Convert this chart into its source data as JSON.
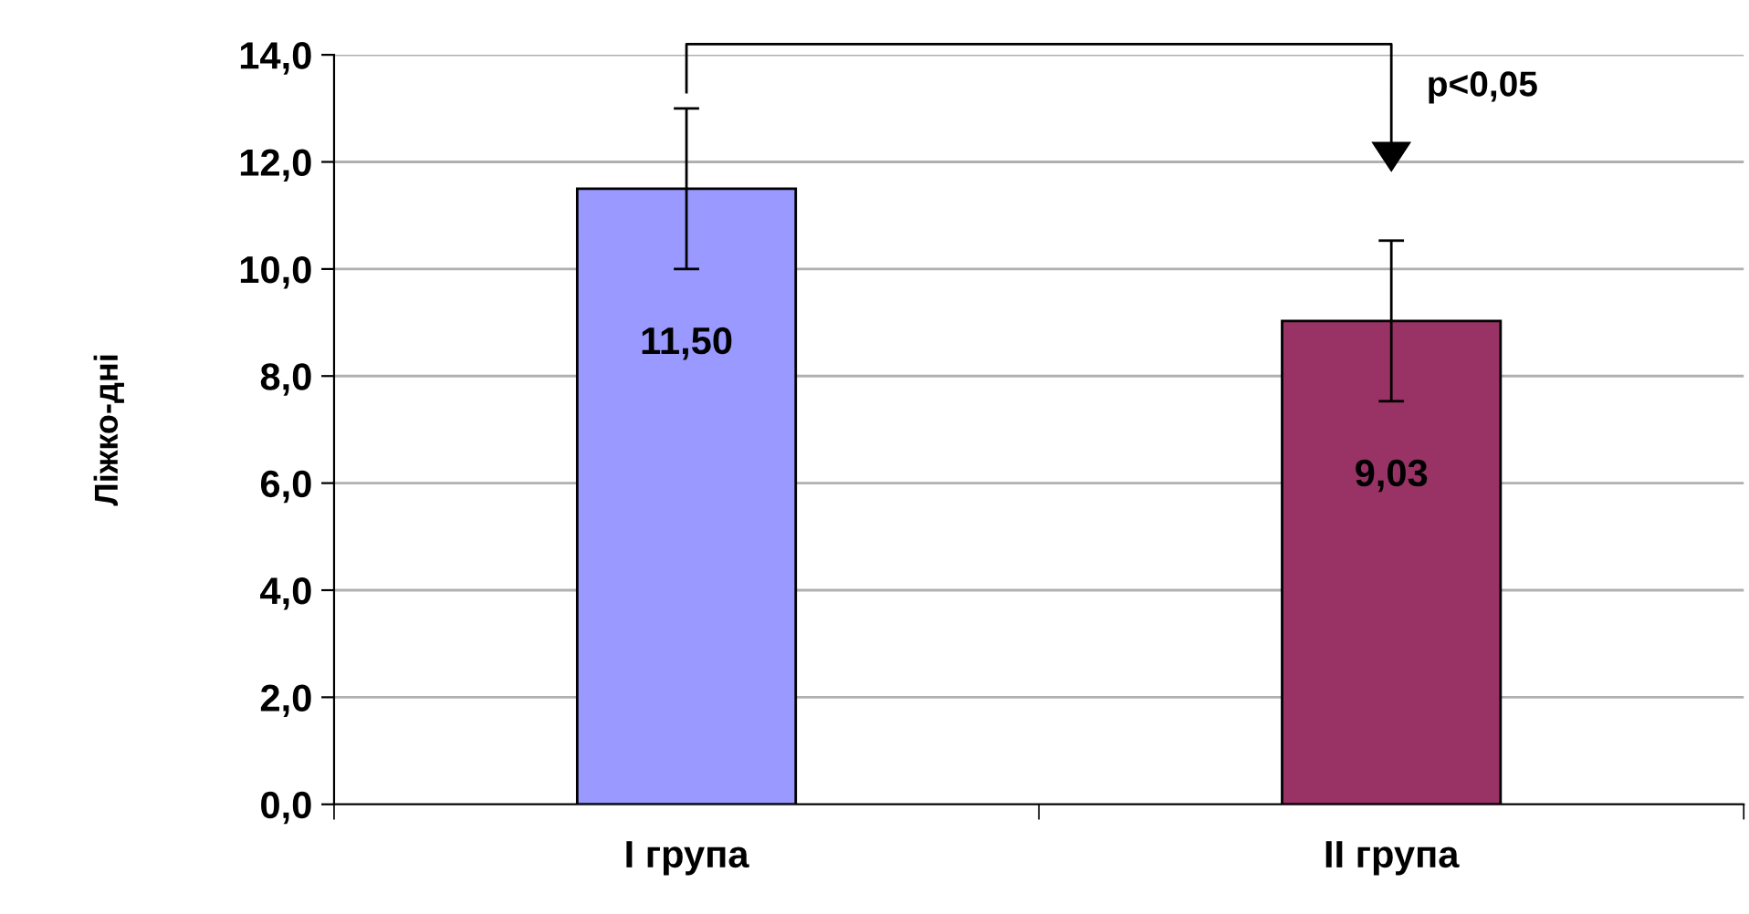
{
  "chart_data": {
    "type": "bar",
    "ylabel": "Ліжко-дні",
    "categories": [
      "I група",
      "II група"
    ],
    "values": [
      11.5,
      9.03
    ],
    "colors": [
      "#9999ff",
      "#993366"
    ],
    "errors": [
      1.5,
      1.5
    ],
    "value_labels": [
      "11,50",
      "9,03"
    ],
    "ylim": [
      0,
      14
    ],
    "yticks": [
      {
        "value": 0,
        "label": "0,0"
      },
      {
        "value": 2,
        "label": "2,0"
      },
      {
        "value": 4,
        "label": "4,0"
      },
      {
        "value": 6,
        "label": "6,0"
      },
      {
        "value": 8,
        "label": "8,0"
      },
      {
        "value": 10,
        "label": "10,0"
      },
      {
        "value": 12,
        "label": "12,0"
      },
      {
        "value": 14,
        "label": "14,0"
      }
    ],
    "grid": "y",
    "legend": false,
    "annotations": [
      "p<0,05"
    ]
  }
}
